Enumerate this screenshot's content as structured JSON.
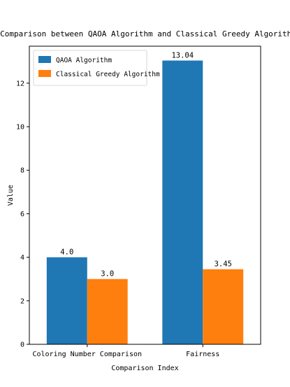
{
  "chart_data": {
    "type": "bar",
    "title": "Comparison between QAOA Algorithm and Classical Greedy Algorithm",
    "xlabel": "Comparison Index",
    "ylabel": "Value",
    "categories": [
      "Coloring Number Comparison",
      "Fairness"
    ],
    "series": [
      {
        "name": "QAOA Algorithm",
        "values": [
          4.0,
          13.04
        ],
        "labels": [
          "4.0",
          "13.04"
        ],
        "color": "#1f77b4"
      },
      {
        "name": "Classical Greedy Algorithm",
        "values": [
          3.0,
          3.45
        ],
        "labels": [
          "3.0",
          "3.45"
        ],
        "color": "#ff7f0e"
      }
    ],
    "ylim": [
      0,
      13.7
    ],
    "yticks": [
      0,
      2,
      4,
      6,
      8,
      10,
      12
    ],
    "grid": false,
    "legend_position": "top-left"
  }
}
